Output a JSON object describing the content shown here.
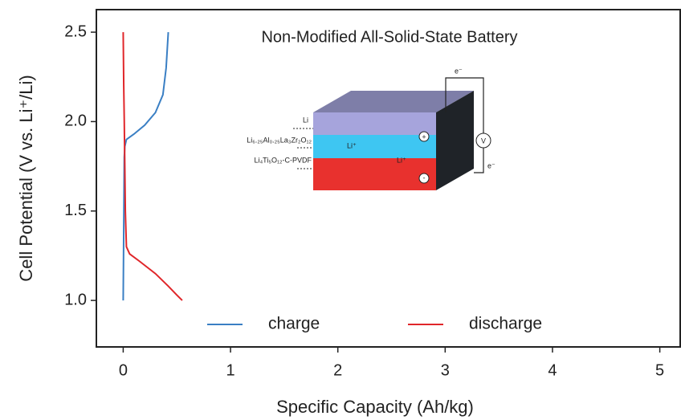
{
  "chart_data": {
    "type": "line",
    "title": "Non-Modified All-Solid-State Battery",
    "x_label": "Specific Capacity (Ah/kg)",
    "y_label": "Cell Potential (V vs. Li⁺/Li)",
    "xlim": [
      -0.25,
      5.19
    ],
    "ylim": [
      0.74,
      2.626
    ],
    "xticks": [
      0,
      1,
      2,
      3,
      4,
      5
    ],
    "yticks": [
      {
        "value": 1,
        "label": "1.0"
      },
      1.5,
      {
        "value": 2,
        "label": "2.0"
      },
      2.5
    ],
    "legend": "lower center",
    "series": [
      {
        "name": "charge",
        "color": "#3a7fc4",
        "x": [
          0,
          0.005,
          0.01,
          0.015,
          0.03,
          0.1,
          0.2,
          0.3,
          0.37,
          0.4,
          0.42
        ],
        "values": [
          1.0,
          1.4,
          1.8,
          1.86,
          1.9,
          1.93,
          1.98,
          2.05,
          2.15,
          2.3,
          2.5
        ]
      },
      {
        "name": "discharge",
        "color": "#e0262a",
        "x": [
          0,
          0.005,
          0.01,
          0.02,
          0.03,
          0.06,
          0.15,
          0.3,
          0.42,
          0.5,
          0.55
        ],
        "values": [
          2.5,
          2.2,
          2.0,
          1.5,
          1.3,
          1.26,
          1.22,
          1.15,
          1.08,
          1.03,
          1.0
        ]
      }
    ],
    "inset": {
      "layer_labels": [
        "Li",
        "Li₆.₂₅Al₀.₂₅La₃Zr₂O₁₂",
        "Li₄Ti₅O₁₂-C-PVDF"
      ],
      "ion_labels": [
        "Li⁺",
        "Li⁺"
      ],
      "electron_labels": [
        "e⁻",
        "e⁻"
      ],
      "meter": "V",
      "positive": "+",
      "negative": "-"
    }
  }
}
